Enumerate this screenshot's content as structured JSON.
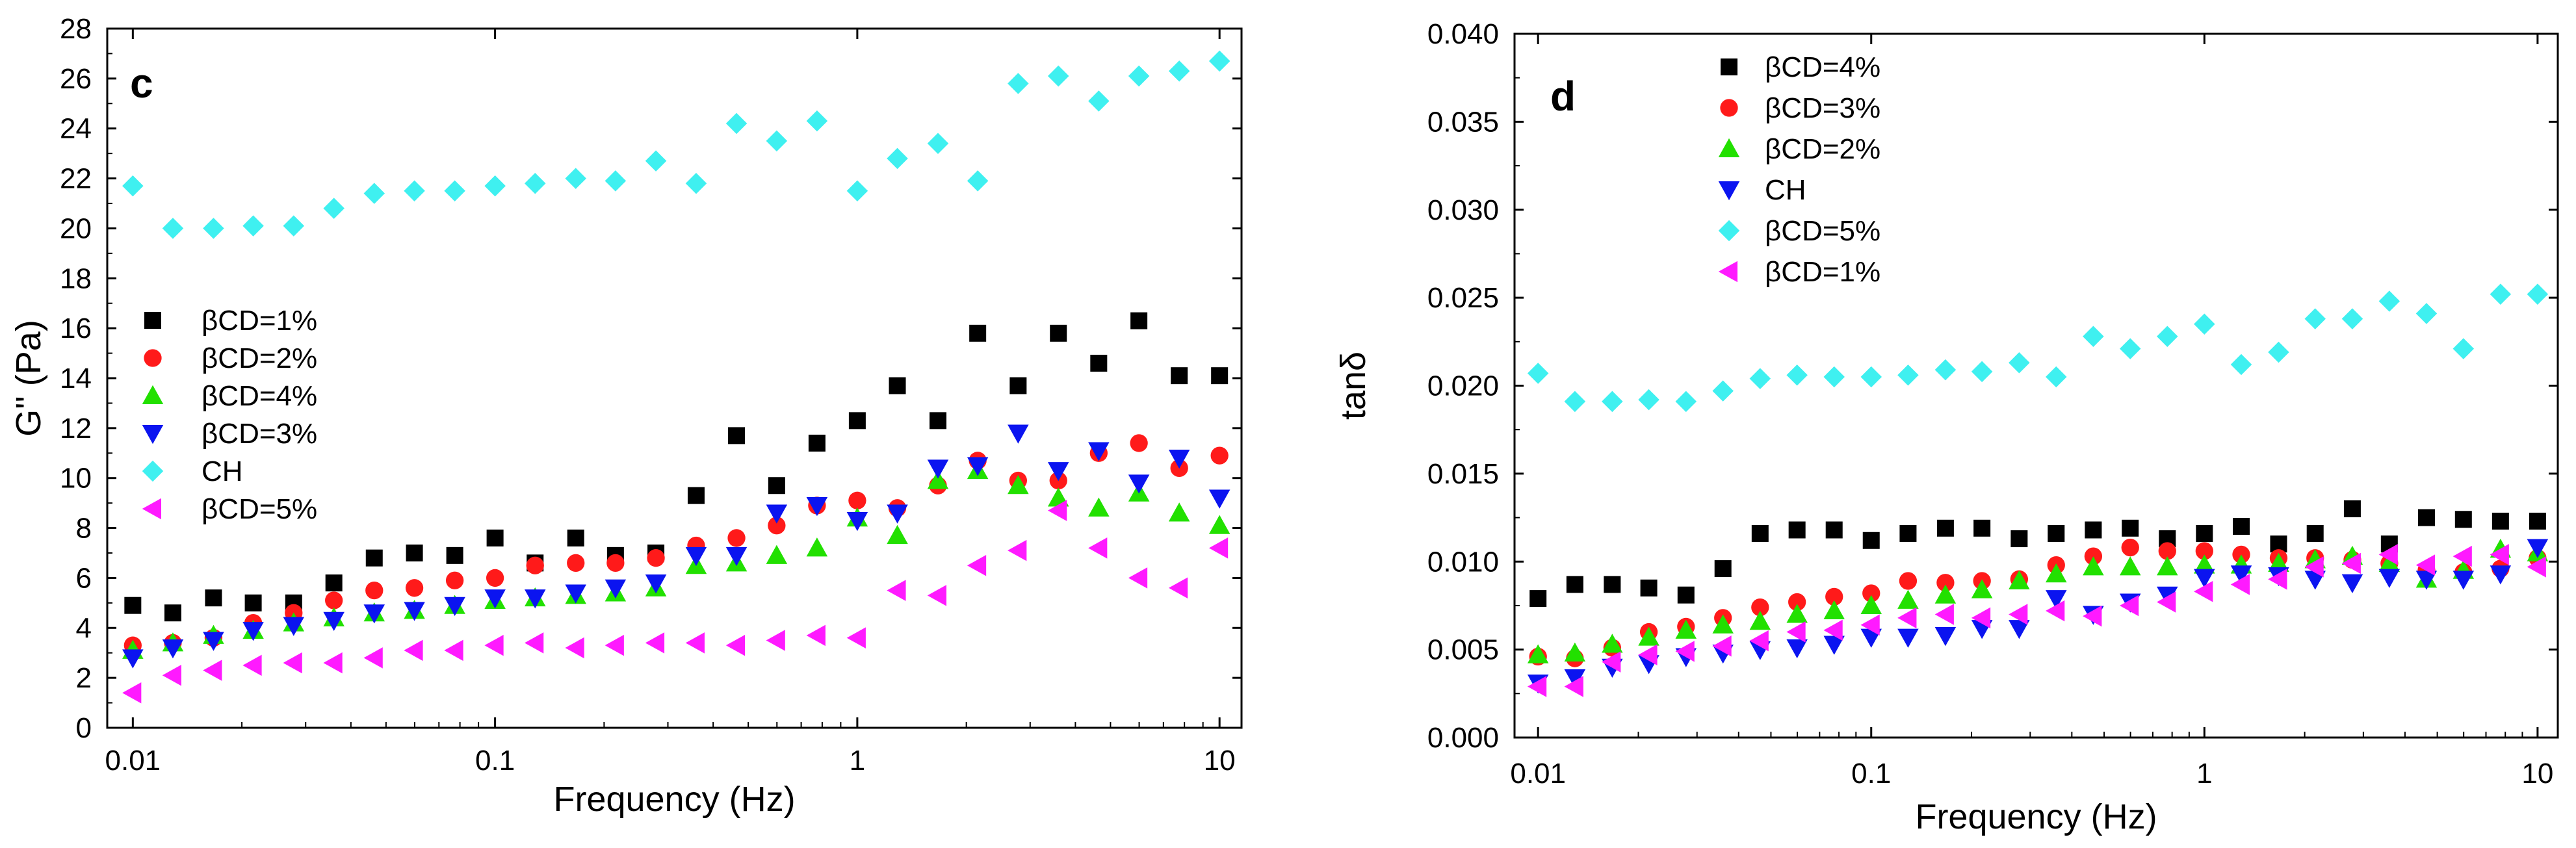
{
  "colors": {
    "black": "#000000",
    "red": "#ff1a1a",
    "green": "#22e000",
    "blue": "#0b14f0",
    "cyan": "#3ff0f0",
    "magenta": "#ff1aff"
  },
  "chart_data": [
    {
      "type": "scatter",
      "panel_label": "c",
      "title": "",
      "xlabel": "Frequency (Hz)",
      "ylabel": "G'' (Pa)",
      "xscale": "log",
      "xlim": [
        0.0085,
        11.5
      ],
      "ylim": [
        0,
        28
      ],
      "xticks": [
        0.01,
        0.1,
        1,
        10
      ],
      "xtick_labels": [
        "0.01",
        "0.1",
        "1",
        "10"
      ],
      "yticks": [
        0,
        2,
        4,
        6,
        8,
        10,
        12,
        14,
        16,
        18,
        20,
        22,
        24,
        26,
        28
      ],
      "ytick_labels": [
        "0",
        "2",
        "4",
        "6",
        "8",
        "10",
        "12",
        "14",
        "16",
        "18",
        "20",
        "22",
        "24",
        "26",
        "28"
      ],
      "legend_position": "center-left",
      "x": [
        0.01,
        0.0129,
        0.0167,
        0.0215,
        0.0278,
        0.0359,
        0.0464,
        0.0599,
        0.0774,
        0.1,
        0.129,
        0.167,
        0.215,
        0.278,
        0.359,
        0.464,
        0.599,
        0.774,
        1,
        1.29,
        1.67,
        2.15,
        2.78,
        3.59,
        4.64,
        5.99,
        7.74,
        10
      ],
      "series": [
        {
          "name": "βCD=1%",
          "marker": "square",
          "color": "#000000",
          "values": [
            4.9,
            4.6,
            5.2,
            5.0,
            5.0,
            5.8,
            6.8,
            7.0,
            6.9,
            7.6,
            6.6,
            7.6,
            6.9,
            7.0,
            9.3,
            11.7,
            9.7,
            11.4,
            12.3,
            13.7,
            12.3,
            15.8,
            13.7,
            15.8,
            14.6,
            16.3,
            14.1,
            14.1
          ]
        },
        {
          "name": "βCD=2%",
          "marker": "circle",
          "color": "#ff1a1a",
          "values": [
            3.3,
            3.4,
            3.6,
            4.2,
            4.6,
            5.1,
            5.5,
            5.6,
            5.9,
            6.0,
            6.5,
            6.6,
            6.6,
            6.8,
            7.3,
            7.6,
            8.1,
            8.9,
            9.1,
            8.8,
            9.7,
            10.7,
            9.9,
            9.9,
            11.0,
            11.4,
            10.4,
            10.9
          ]
        },
        {
          "name": "βCD=4%",
          "marker": "triangle-up",
          "color": "#22e000",
          "values": [
            3.1,
            3.4,
            3.7,
            3.9,
            4.2,
            4.4,
            4.6,
            4.7,
            4.9,
            5.1,
            5.2,
            5.3,
            5.4,
            5.6,
            6.5,
            6.6,
            6.9,
            7.2,
            8.4,
            7.7,
            9.9,
            10.3,
            9.7,
            9.2,
            8.8,
            9.4,
            8.6,
            8.1
          ]
        },
        {
          "name": "βCD=3%",
          "marker": "triangle-down",
          "color": "#0b14f0",
          "values": [
            2.8,
            3.2,
            3.5,
            3.9,
            4.1,
            4.3,
            4.6,
            4.7,
            4.9,
            5.2,
            5.2,
            5.4,
            5.6,
            5.8,
            6.9,
            6.9,
            8.6,
            8.9,
            8.3,
            8.6,
            10.4,
            10.5,
            11.8,
            10.3,
            11.1,
            9.8,
            10.8,
            9.2
          ]
        },
        {
          "name": "CH",
          "marker": "diamond",
          "color": "#3ff0f0",
          "values": [
            21.7,
            20.0,
            20.0,
            20.1,
            20.1,
            20.8,
            21.4,
            21.5,
            21.5,
            21.7,
            21.8,
            22.0,
            21.9,
            22.7,
            21.8,
            24.2,
            23.5,
            24.3,
            21.5,
            22.8,
            23.4,
            21.9,
            25.8,
            26.1,
            25.1,
            26.1,
            26.3,
            26.7
          ]
        },
        {
          "name": "βCD=5%",
          "marker": "triangle-left",
          "color": "#ff1aff",
          "values": [
            1.4,
            2.1,
            2.3,
            2.5,
            2.6,
            2.6,
            2.8,
            3.1,
            3.1,
            3.3,
            3.4,
            3.2,
            3.3,
            3.4,
            3.4,
            3.3,
            3.5,
            3.7,
            3.6,
            5.5,
            5.3,
            6.5,
            7.1,
            8.7,
            7.2,
            6.0,
            5.6,
            7.2
          ]
        }
      ]
    },
    {
      "type": "scatter",
      "panel_label": "d",
      "title": "",
      "xlabel": "Frequency (Hz)",
      "ylabel": "tanδ",
      "xscale": "log",
      "xlim": [
        0.0085,
        11.5
      ],
      "ylim": [
        0,
        0.04
      ],
      "xticks": [
        0.01,
        0.1,
        1,
        10
      ],
      "xtick_labels": [
        "0.01",
        "0.1",
        "1",
        "10"
      ],
      "yticks": [
        0,
        0.005,
        0.01,
        0.015,
        0.02,
        0.025,
        0.03,
        0.035,
        0.04
      ],
      "ytick_labels": [
        "0.000",
        "0.005",
        "0.010",
        "0.015",
        "0.020",
        "0.025",
        "0.030",
        "0.035",
        "0.040"
      ],
      "legend_position": "top-left",
      "x": [
        0.01,
        0.0129,
        0.0167,
        0.0215,
        0.0278,
        0.0359,
        0.0464,
        0.0599,
        0.0774,
        0.1,
        0.129,
        0.167,
        0.215,
        0.278,
        0.359,
        0.464,
        0.599,
        0.774,
        1,
        1.29,
        1.67,
        2.15,
        2.78,
        3.59,
        4.64,
        5.99,
        7.74,
        10
      ],
      "series": [
        {
          "name": "βCD=4%",
          "marker": "square",
          "color": "#000000",
          "values": [
            0.0079,
            0.0087,
            0.0087,
            0.0085,
            0.0081,
            0.0096,
            0.0116,
            0.0118,
            0.0118,
            0.0112,
            0.0116,
            0.0119,
            0.0119,
            0.0113,
            0.0116,
            0.0118,
            0.0119,
            0.0113,
            0.0116,
            0.012,
            0.011,
            0.0116,
            0.013,
            0.011,
            0.0125,
            0.0124,
            0.0123,
            0.0123
          ]
        },
        {
          "name": "βCD=3%",
          "marker": "circle",
          "color": "#ff1a1a",
          "values": [
            0.0046,
            0.0045,
            0.0051,
            0.006,
            0.0063,
            0.0068,
            0.0074,
            0.0077,
            0.008,
            0.0082,
            0.0089,
            0.0088,
            0.0089,
            0.009,
            0.0098,
            0.0103,
            0.0108,
            0.0106,
            0.0106,
            0.0104,
            0.0102,
            0.0102,
            0.0101,
            0.0099,
            0.0095,
            0.0094,
            0.0096,
            0.0102
          ]
        },
        {
          "name": "βCD=2%",
          "marker": "triangle-up",
          "color": "#22e000",
          "values": [
            0.0047,
            0.0048,
            0.0053,
            0.0057,
            0.0061,
            0.0064,
            0.0066,
            0.007,
            0.0072,
            0.0075,
            0.0078,
            0.0081,
            0.0084,
            0.0089,
            0.0093,
            0.0097,
            0.0097,
            0.0097,
            0.0098,
            0.0098,
            0.0099,
            0.0101,
            0.0103,
            0.0099,
            0.009,
            0.0095,
            0.0107,
            0.0105
          ]
        },
        {
          "name": "CH",
          "marker": "triangle-down",
          "color": "#0b14f0",
          "values": [
            0.0031,
            0.0034,
            0.004,
            0.0042,
            0.0046,
            0.0048,
            0.005,
            0.0051,
            0.0053,
            0.0057,
            0.0057,
            0.0058,
            0.0062,
            0.0062,
            0.0079,
            0.007,
            0.0077,
            0.0081,
            0.0091,
            0.0093,
            0.0092,
            0.009,
            0.0088,
            0.0091,
            0.009,
            0.009,
            0.0093,
            0.0108
          ]
        },
        {
          "name": "βCD=5%",
          "marker": "diamond",
          "color": "#3ff0f0",
          "values": [
            0.0207,
            0.0191,
            0.0191,
            0.0192,
            0.0191,
            0.0197,
            0.0204,
            0.0206,
            0.0205,
            0.0205,
            0.0206,
            0.0209,
            0.0208,
            0.0213,
            0.0205,
            0.0228,
            0.0221,
            0.0228,
            0.0235,
            0.0212,
            0.0219,
            0.0238,
            0.0238,
            0.0248,
            0.0241,
            0.0221,
            0.0252,
            0.0252
          ]
        },
        {
          "name": "βCD=1%",
          "marker": "triangle-left",
          "color": "#ff1aff",
          "values": [
            0.0029,
            0.0029,
            0.0043,
            0.0047,
            0.0049,
            0.0052,
            0.0055,
            0.006,
            0.0061,
            0.0064,
            0.0068,
            0.007,
            0.0068,
            0.007,
            0.0072,
            0.0069,
            0.0075,
            0.0077,
            0.0083,
            0.0087,
            0.009,
            0.0097,
            0.0099,
            0.0104,
            0.0098,
            0.0103,
            0.0104,
            0.0097
          ]
        }
      ]
    }
  ]
}
